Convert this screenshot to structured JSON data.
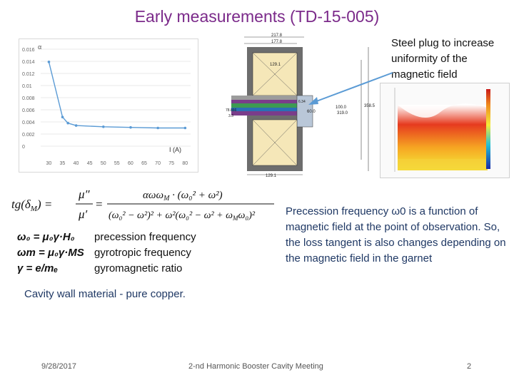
{
  "title": "Early measurements (TD-15-005)",
  "note": "Steel plug to increase uniformity of the magnetic field",
  "chart_data": {
    "type": "line",
    "ylabel": "α",
    "xlabel": "I (A)",
    "x": [
      30,
      35,
      40,
      45,
      50,
      55,
      60,
      65,
      70,
      75,
      80
    ],
    "x_ticks": [
      "30",
      "35",
      "40",
      "45",
      "50",
      "55",
      "60",
      "65",
      "70",
      "75",
      "80"
    ],
    "y_ticks": [
      "0",
      "0.002",
      "0.004",
      "0.006",
      "0.008",
      "0.01",
      "0.012",
      "0.014",
      "0.016"
    ],
    "ylim": [
      0,
      0.016
    ],
    "xlim": [
      27,
      82
    ],
    "points": [
      [
        30,
        0.0139
      ],
      [
        35,
        0.0048
      ],
      [
        37,
        0.0038
      ],
      [
        40,
        0.0034
      ],
      [
        50,
        0.0032
      ],
      [
        60,
        0.0031
      ],
      [
        70,
        0.003
      ],
      [
        80,
        0.003
      ]
    ],
    "grid": true
  },
  "cavity_labels": {
    "top1": "217.8",
    "top2": "177.8",
    "inner": "129.1",
    "left1": "78.866",
    "left2": "3.3",
    "mid": "60.0",
    "r1": "100.0",
    "r2": "319.0",
    "r3": "358.5",
    "bottom": "129.1",
    "small": "6.34"
  },
  "formula": {
    "lhs": "tg(δ",
    "lhs_sub": "M",
    "lhs_close": ") =",
    "frac1_num": "μ″",
    "frac1_den": "μ′",
    "eq": "=",
    "num": "αωω",
    "num_sub": "M",
    "num_rest": " · (ω₀² + ω²)",
    "den": "(ω₀² − ω²)² + ω²(ω₀² − ω² + ω",
    "den_sub": "M",
    "den_rest": "ω₀)²"
  },
  "definitions": [
    {
      "symbol": "ω₀ = μ₀γ·H₀",
      "meaning": "precession frequency"
    },
    {
      "symbol": "ωm = μ₀γ·MS",
      "meaning": "gyrotropic frequency"
    },
    {
      "symbol": "γ = e/mₑ",
      "meaning": "gyromagnetic ratio"
    }
  ],
  "precession_text": "Precession frequency ω0 is a function of magnetic field at the point of observation. So, the loss tangent is also changes depending on the magnetic field in the garnet",
  "wall_text": "Cavity wall material - pure copper.",
  "footer": {
    "date": "9/28/2017",
    "center": "2-nd Harmonic Booster Cavity Meeting",
    "page": "2"
  },
  "colors": {
    "title": "#7b2a8a",
    "body_text": "#1f3864",
    "arrow": "#5b9bd5",
    "chart_line": "#5b9bd5"
  }
}
